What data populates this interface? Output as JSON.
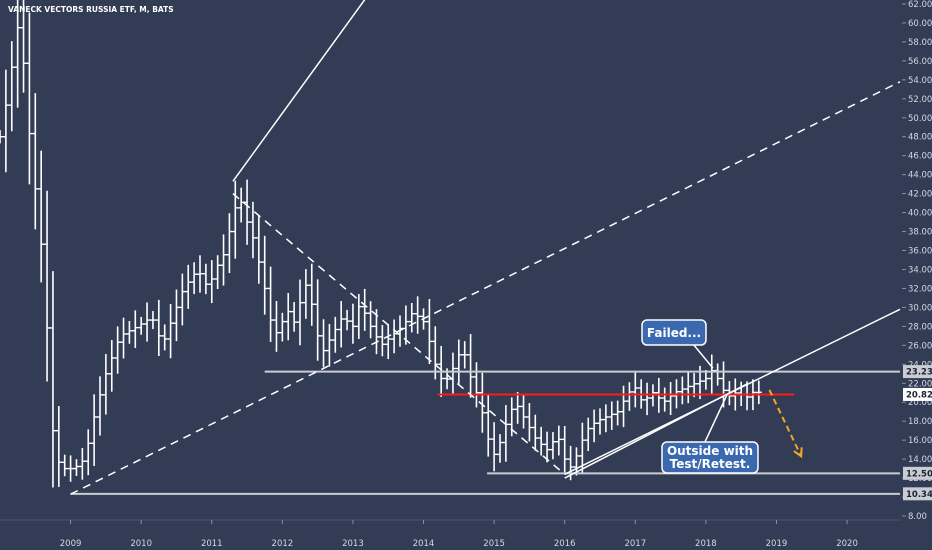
{
  "chart_data": {
    "type": "bar",
    "title": "VANECK VECTORS RUSSIA ETF, M, BATS",
    "xlabel": "",
    "ylabel": "",
    "ylim": [
      8,
      62
    ],
    "xlim": [
      2008.0,
      2020.75
    ],
    "grid": false,
    "y_ticks": [
      "8.00",
      "10.00",
      "12.00",
      "14.00",
      "16.00",
      "18.00",
      "20.00",
      "22.00",
      "24.00",
      "26.00",
      "28.00",
      "30.00",
      "32.00",
      "34.00",
      "36.00",
      "38.00",
      "40.00",
      "42.00",
      "44.00",
      "46.00",
      "48.00",
      "50.00",
      "52.00",
      "54.00",
      "56.00",
      "58.00",
      "60.00",
      "62.00"
    ],
    "x_ticks": [
      "2009",
      "2010",
      "2011",
      "2012",
      "2013",
      "2014",
      "2015",
      "2016",
      "2017",
      "2018",
      "2019",
      "2020"
    ],
    "price_labels": [
      {
        "value": 23.23,
        "text": "23.23",
        "color": "#c9ccd3"
      },
      {
        "value": 20.82,
        "text": "20.82",
        "color": "#ffffff"
      },
      {
        "value": 12.5,
        "text": "12.50",
        "color": "#c9ccd3"
      },
      {
        "value": 10.34,
        "text": "10.34",
        "color": "#c9ccd3"
      }
    ],
    "anchors": [
      [
        2008.0,
        48
      ],
      [
        2008.1,
        52
      ],
      [
        2008.2,
        57
      ],
      [
        2008.25,
        59.5
      ],
      [
        2008.35,
        55
      ],
      [
        2008.45,
        45
      ],
      [
        2008.55,
        40
      ],
      [
        2008.65,
        30
      ],
      [
        2008.75,
        17
      ],
      [
        2008.85,
        13
      ],
      [
        2008.95,
        13
      ],
      [
        2009.05,
        13
      ],
      [
        2009.2,
        14
      ],
      [
        2009.35,
        19
      ],
      [
        2009.5,
        23
      ],
      [
        2009.7,
        27
      ],
      [
        2009.95,
        28
      ],
      [
        2010.15,
        29
      ],
      [
        2010.3,
        26
      ],
      [
        2010.45,
        29
      ],
      [
        2010.6,
        32
      ],
      [
        2010.8,
        34
      ],
      [
        2010.95,
        32
      ],
      [
        2011.05,
        34
      ],
      [
        2011.2,
        36
      ],
      [
        2011.3,
        40
      ],
      [
        2011.4,
        41.5
      ],
      [
        2011.5,
        39
      ],
      [
        2011.6,
        37
      ],
      [
        2011.75,
        32
      ],
      [
        2011.85,
        28
      ],
      [
        2011.95,
        27
      ],
      [
        2012.05,
        30
      ],
      [
        2012.2,
        28
      ],
      [
        2012.3,
        33
      ],
      [
        2012.4,
        31
      ],
      [
        2012.55,
        25
      ],
      [
        2012.7,
        27
      ],
      [
        2012.85,
        29
      ],
      [
        2013.0,
        28
      ],
      [
        2013.1,
        30.5
      ],
      [
        2013.25,
        28
      ],
      [
        2013.4,
        26
      ],
      [
        2013.55,
        27
      ],
      [
        2013.7,
        28
      ],
      [
        2013.85,
        29.5
      ],
      [
        2014.0,
        28.5
      ],
      [
        2014.1,
        26
      ],
      [
        2014.2,
        23
      ],
      [
        2014.3,
        22
      ],
      [
        2014.45,
        24
      ],
      [
        2014.55,
        26
      ],
      [
        2014.65,
        23
      ],
      [
        2014.8,
        20
      ],
      [
        2014.92,
        16
      ],
      [
        2015.0,
        14.5
      ],
      [
        2015.1,
        16
      ],
      [
        2015.2,
        18.5
      ],
      [
        2015.3,
        20
      ],
      [
        2015.45,
        18
      ],
      [
        2015.6,
        16
      ],
      [
        2015.75,
        15
      ],
      [
        2015.9,
        16.5
      ],
      [
        2016.0,
        14
      ],
      [
        2016.1,
        13
      ],
      [
        2016.2,
        15
      ],
      [
        2016.3,
        17
      ],
      [
        2016.45,
        18
      ],
      [
        2016.6,
        18.5
      ],
      [
        2016.75,
        19
      ],
      [
        2016.9,
        21
      ],
      [
        2017.0,
        21.5
      ],
      [
        2017.1,
        20
      ],
      [
        2017.25,
        21
      ],
      [
        2017.4,
        20
      ],
      [
        2017.55,
        21
      ],
      [
        2017.7,
        21.5
      ],
      [
        2017.85,
        22
      ],
      [
        2018.0,
        22.5
      ],
      [
        2018.1,
        23.5
      ],
      [
        2018.2,
        22
      ],
      [
        2018.3,
        20.5
      ],
      [
        2018.4,
        21
      ],
      [
        2018.5,
        20.8
      ],
      [
        2018.6,
        20.5
      ],
      [
        2018.7,
        21.3
      ],
      [
        2018.8,
        20.8
      ]
    ],
    "horizontal_lines": [
      {
        "x": [
          2011.75,
          2020.75
        ],
        "y": 23.23,
        "color": "#c9ccd3"
      },
      {
        "x": [
          2014.2,
          2019.25
        ],
        "y": 20.82,
        "color": "#ff1a1a"
      },
      {
        "x": [
          2014.9,
          2020.75
        ],
        "y": 12.5,
        "color": "#c9ccd3"
      },
      {
        "x": [
          2009.0,
          2020.75
        ],
        "y": 10.34,
        "color": "#c9ccd3"
      }
    ],
    "trendlines": [
      {
        "from": [
          2011.3,
          43.3
        ],
        "to": [
          2014.0,
          71.0
        ],
        "dashed": false
      },
      {
        "from": [
          2009.0,
          10.3
        ],
        "to": [
          2020.75,
          53.8
        ],
        "dashed": true
      },
      {
        "from": [
          2011.3,
          42.0
        ],
        "to": [
          2016.0,
          12.4
        ],
        "dashed": true
      },
      {
        "from": [
          2016.0,
          12.4
        ],
        "to": [
          2020.75,
          29.8
        ],
        "dashed": false
      },
      {
        "from": [
          2016.0,
          12.0
        ],
        "to": [
          2018.6,
          22.0
        ],
        "dashed": false
      }
    ],
    "projection": {
      "from": [
        2018.9,
        21.3
      ],
      "to": [
        2019.35,
        14.3
      ],
      "color": "#f5a623"
    },
    "annotations": [
      {
        "text": "Failed...",
        "at": [
          2018.1,
          23.6
        ]
      },
      {
        "text": "Outside with",
        "at": [
          2018.3,
          20.8
        ]
      },
      {
        "text": "Test/Retest.",
        "at": [
          2018.3,
          20.8
        ]
      }
    ]
  }
}
